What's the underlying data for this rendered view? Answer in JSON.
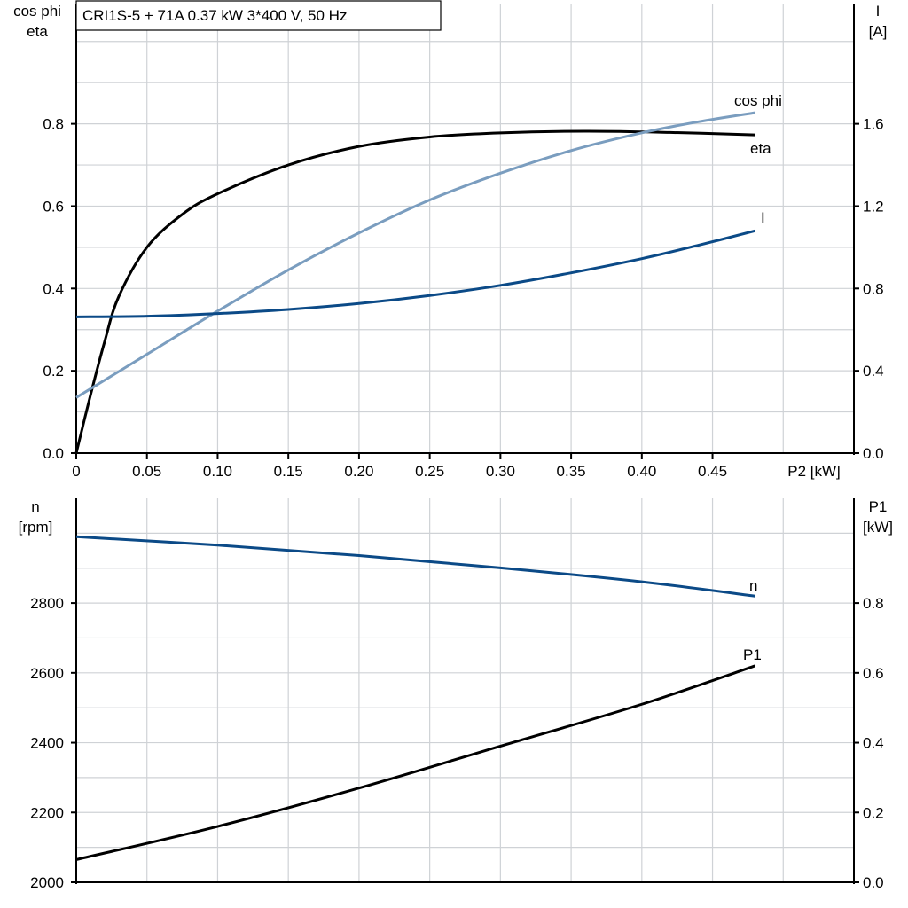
{
  "title": "CRI1S-5 + 71A   0.37 kW   3*400 V, 50 Hz",
  "colors": {
    "eta": "#000000",
    "cos_phi": "#7a9dbf",
    "I": "#0b4a87",
    "n": "#0b4a87",
    "P1": "#000000"
  },
  "chart_data": [
    {
      "type": "line",
      "left_axis_label": [
        "cos phi",
        "eta"
      ],
      "right_axis_label": [
        "I",
        "[A]"
      ],
      "xlabel": "P2 [kW]",
      "xlim": [
        0,
        0.55
      ],
      "x_ticks": [
        "0",
        "0.05",
        "0.10",
        "0.15",
        "0.20",
        "0.25",
        "0.30",
        "0.35",
        "0.40",
        "0.45"
      ],
      "ylim_left": [
        0,
        1.09
      ],
      "ylim_right": [
        0,
        2.18
      ],
      "y_ticks_left": [
        "0.0",
        "0.2",
        "0.4",
        "0.6",
        "0.8"
      ],
      "y_ticks_right": [
        "0.0",
        "0.4",
        "0.8",
        "1.2",
        "1.6"
      ],
      "grid": true,
      "series": [
        {
          "name": "eta",
          "axis": "left",
          "x": [
            0,
            0.01,
            0.02,
            0.03,
            0.05,
            0.075,
            0.1,
            0.15,
            0.2,
            0.25,
            0.3,
            0.36,
            0.42,
            0.48
          ],
          "y": [
            0,
            0.14,
            0.27,
            0.38,
            0.5,
            0.58,
            0.63,
            0.7,
            0.745,
            0.768,
            0.778,
            0.782,
            0.779,
            0.773
          ]
        },
        {
          "name": "cos phi",
          "axis": "left",
          "x": [
            0,
            0.05,
            0.1,
            0.15,
            0.2,
            0.25,
            0.3,
            0.35,
            0.4,
            0.44,
            0.48
          ],
          "y": [
            0.135,
            0.24,
            0.345,
            0.445,
            0.535,
            0.615,
            0.68,
            0.735,
            0.778,
            0.805,
            0.827
          ]
        },
        {
          "name": "I",
          "axis": "right",
          "x": [
            0,
            0.05,
            0.1,
            0.15,
            0.2,
            0.25,
            0.3,
            0.35,
            0.4,
            0.44,
            0.48
          ],
          "y": [
            0.662,
            0.665,
            0.678,
            0.698,
            0.727,
            0.766,
            0.815,
            0.876,
            0.945,
            1.01,
            1.08
          ]
        }
      ]
    },
    {
      "type": "line",
      "left_axis_label": [
        "n",
        "[rpm]"
      ],
      "right_axis_label": [
        "P1",
        "[kW]"
      ],
      "xlim": [
        0,
        0.55
      ],
      "ylim_left": [
        2000,
        3100
      ],
      "ylim_right": [
        0,
        1.1
      ],
      "y_ticks_left": [
        "2000",
        "2200",
        "2400",
        "2600",
        "2800"
      ],
      "y_ticks_right": [
        "0.0",
        "0.2",
        "0.4",
        "0.6",
        "0.8"
      ],
      "grid": true,
      "series": [
        {
          "name": "n",
          "axis": "left",
          "x": [
            0,
            0.1,
            0.2,
            0.3,
            0.4,
            0.48
          ],
          "y": [
            2990,
            2966,
            2936,
            2901,
            2861,
            2820
          ]
        },
        {
          "name": "P1",
          "axis": "right",
          "x": [
            0,
            0.1,
            0.2,
            0.3,
            0.4,
            0.48
          ],
          "y": [
            0.065,
            0.16,
            0.27,
            0.39,
            0.51,
            0.62
          ]
        }
      ]
    }
  ]
}
